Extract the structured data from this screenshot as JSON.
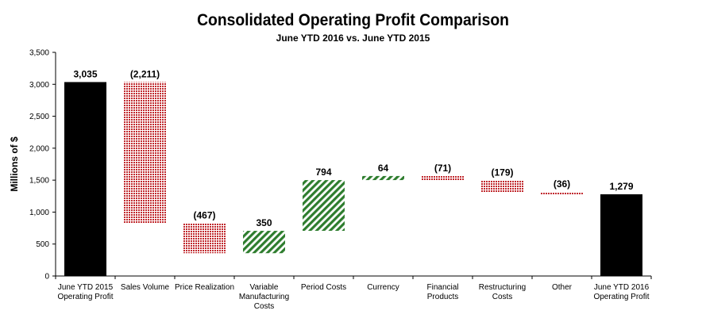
{
  "chart_data": {
    "type": "waterfall",
    "title": "Consolidated Operating Profit Comparison",
    "subtitle": "June YTD 2016 vs. June YTD 2015",
    "ylabel": "Millions of $",
    "xlabel": "",
    "ylim": [
      0,
      3500
    ],
    "yticks": [
      "0",
      "500",
      "1,000",
      "1,500",
      "2,000",
      "2,500",
      "3,000",
      "3,500"
    ],
    "grid": false,
    "categories": [
      [
        "June YTD 2015",
        "Operating Profit"
      ],
      [
        "Sales Volume"
      ],
      [
        "Price Realization"
      ],
      [
        "Variable",
        "Manufacturing",
        "Costs"
      ],
      [
        "Period Costs"
      ],
      [
        "Currency"
      ],
      [
        "Financial",
        "Products"
      ],
      [
        "Restructuring",
        "Costs"
      ],
      [
        "Other"
      ],
      [
        "June YTD 2016",
        "Operating Profit"
      ]
    ],
    "values": [
      3035,
      -2211,
      -467,
      350,
      794,
      64,
      -71,
      -179,
      -36,
      1279
    ],
    "kinds": [
      "total",
      "delta",
      "delta",
      "delta",
      "delta",
      "delta",
      "delta",
      "delta",
      "delta",
      "total"
    ],
    "data_labels": [
      "3,035",
      "(2,211)",
      "(467)",
      "350",
      "794",
      "64",
      "(71)",
      "(179)",
      "(36)",
      "1,279"
    ],
    "colors": {
      "total": "#000000",
      "increase": "#2e7d2e",
      "decrease": "#c0282d"
    }
  }
}
